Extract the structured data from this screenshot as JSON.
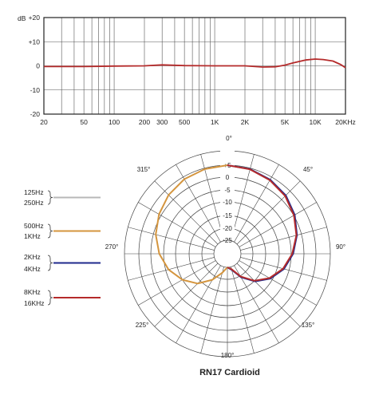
{
  "chart_data": [
    {
      "type": "line",
      "xscale": "log",
      "xlim": [
        20,
        20000
      ],
      "ylim": [
        -20,
        20
      ],
      "grid": true,
      "ylabel": "dB",
      "y_ticks": [
        "+20",
        "+10",
        "0",
        "-10",
        "-20"
      ],
      "x_ticks": [
        "20",
        "50",
        "100",
        "200",
        "300",
        "500",
        "1K",
        "2K",
        "5K",
        "10K",
        "20KHz"
      ],
      "series": [
        {
          "color": "#b52b2b",
          "x": [
            20,
            50,
            100,
            200,
            300,
            500,
            1000,
            2000,
            3000,
            4000,
            5000,
            6000,
            8000,
            10000,
            12000,
            15000,
            18000,
            20000
          ],
          "y": [
            -0.3,
            -0.3,
            -0.1,
            0,
            0.4,
            0.1,
            0,
            0,
            -0.5,
            -0.4,
            0.3,
            1.2,
            2.4,
            2.8,
            2.6,
            2.0,
            0.5,
            -0.8
          ]
        }
      ]
    },
    {
      "type": "polar",
      "title": "RN17 Cardioid",
      "ring_labels": [
        "+5",
        "0",
        "-5",
        "-10",
        "-15",
        "-20",
        "-25"
      ],
      "angle_labels": [
        "0°",
        "45°",
        "90°",
        "135°",
        "180°",
        "225°",
        "270°",
        "315°"
      ],
      "rlim": [
        -25,
        5
      ],
      "angles": [
        0,
        15,
        30,
        45,
        60,
        75,
        90,
        105,
        120,
        135,
        150,
        165,
        180
      ],
      "legend": [
        {
          "labels": [
            "125Hz",
            "250Hz"
          ],
          "color": "#b8b8b8"
        },
        {
          "labels": [
            "500Hz",
            "1KHz"
          ],
          "color": "#d4953e"
        },
        {
          "labels": [
            "2KHz",
            "4KHz"
          ],
          "color": "#1f2a8c"
        },
        {
          "labels": [
            "8KHz",
            "16KHz"
          ],
          "color": "#b52b2b"
        }
      ],
      "series": [
        {
          "color": "#d4953e",
          "side": "left",
          "db": [
            0,
            -0.3,
            -0.8,
            -1.8,
            -3.2,
            -4.8,
            -6.8,
            -9.2,
            -12.2,
            -15.5,
            -19.5,
            -23,
            -25
          ]
        },
        {
          "color": "#1f2a8c",
          "side": "right",
          "db": [
            0,
            -0.3,
            -1.0,
            -2.0,
            -3.6,
            -5.5,
            -7.6,
            -10.0,
            -13.0,
            -16.5,
            -20.5,
            -24,
            -25
          ]
        },
        {
          "color": "#b52b2b",
          "side": "right",
          "db": [
            0,
            -0.4,
            -1.2,
            -2.3,
            -3.9,
            -5.7,
            -7.9,
            -10.3,
            -13.3,
            -16.8,
            -20.8,
            -24.2,
            -25
          ]
        }
      ]
    }
  ]
}
